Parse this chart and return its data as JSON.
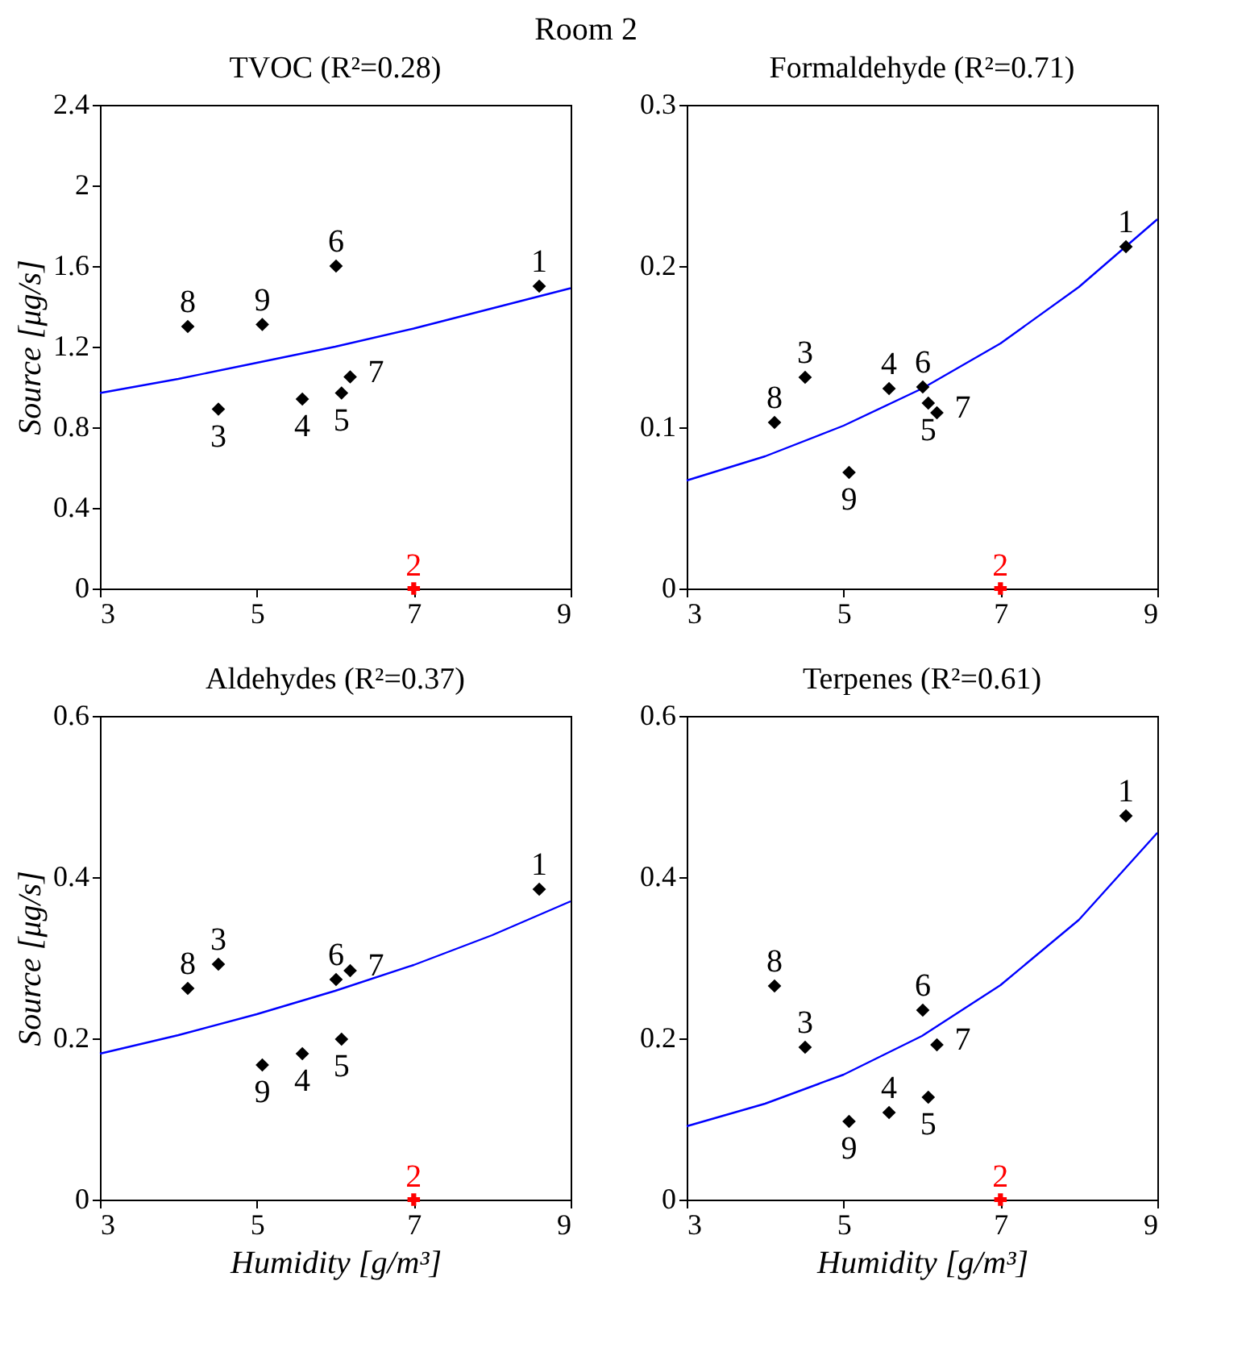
{
  "chart_data": [
    {
      "type": "other",
      "title": "Room 2"
    },
    {
      "type": "scatter",
      "title": "TVOC (R²=0.28)",
      "ylabel": "Source [μg/s]",
      "xlim": [
        3,
        9
      ],
      "xticks": [
        3,
        5,
        7,
        9
      ],
      "ylim": [
        0,
        2.4
      ],
      "yticks": [
        0,
        0.4,
        0.8,
        1.2,
        1.6,
        2,
        2.4
      ],
      "grid": false,
      "series": [
        {
          "type": "line",
          "color": "#0000ff",
          "marker": "none",
          "line_style": "solid",
          "x": [
            3,
            4,
            5,
            6,
            7,
            8,
            9
          ],
          "values": [
            0.97,
            1.04,
            1.12,
            1.2,
            1.29,
            1.39,
            1.49
          ]
        },
        {
          "color": "#000000",
          "marker": "diamond",
          "x": [
            8.6,
            4.51,
            5.58,
            6.08,
            6.01,
            6.19,
            4.12,
            5.07
          ],
          "values": [
            1.5,
            0.89,
            0.94,
            0.97,
            1.6,
            1.05,
            1.3,
            1.31
          ]
        },
        {
          "name": "2",
          "color": "#ff0000",
          "marker": "cross",
          "x": [
            7
          ],
          "values": [
            0
          ]
        }
      ],
      "annotations": [
        {
          "text": "1",
          "x": 8.6,
          "y": 1.5
        },
        {
          "text": "3",
          "x": 4.51,
          "y": 0.89
        },
        {
          "text": "4",
          "x": 5.58,
          "y": 0.94
        },
        {
          "text": "5",
          "x": 6.08,
          "y": 0.97
        },
        {
          "text": "6",
          "x": 6.01,
          "y": 1.6
        },
        {
          "text": "7",
          "x": 6.19,
          "y": 1.05
        },
        {
          "text": "8",
          "x": 4.12,
          "y": 1.3
        },
        {
          "text": "9",
          "x": 5.07,
          "y": 1.31
        }
      ]
    },
    {
      "type": "scatter",
      "title": "Formaldehyde (R²=0.71)",
      "xlim": [
        3,
        9
      ],
      "xticks": [
        3,
        5,
        7,
        9
      ],
      "ylim": [
        0,
        0.3
      ],
      "yticks": [
        0,
        0.1,
        0.2,
        0.3
      ],
      "grid": false,
      "series": [
        {
          "type": "line",
          "color": "#0000ff",
          "marker": "none",
          "line_style": "solid",
          "x": [
            3,
            4,
            5,
            6,
            7,
            8,
            9
          ],
          "values": [
            0.067,
            0.082,
            0.101,
            0.124,
            0.152,
            0.187,
            0.229
          ]
        },
        {
          "color": "#000000",
          "marker": "diamond",
          "x": [
            8.6,
            4.51,
            5.58,
            6.08,
            6.01,
            6.19,
            4.12,
            5.07
          ],
          "values": [
            0.212,
            0.131,
            0.124,
            0.115,
            0.125,
            0.109,
            0.103,
            0.072
          ]
        },
        {
          "name": "2",
          "color": "#ff0000",
          "marker": "cross",
          "x": [
            7
          ],
          "values": [
            0
          ]
        }
      ],
      "annotations": [
        {
          "text": "1",
          "x": 8.6,
          "y": 0.212
        },
        {
          "text": "3",
          "x": 4.51,
          "y": 0.131
        },
        {
          "text": "4",
          "x": 5.58,
          "y": 0.124
        },
        {
          "text": "5",
          "x": 6.08,
          "y": 0.115
        },
        {
          "text": "6",
          "x": 6.01,
          "y": 0.125
        },
        {
          "text": "7",
          "x": 6.19,
          "y": 0.109
        },
        {
          "text": "8",
          "x": 4.12,
          "y": 0.103
        },
        {
          "text": "9",
          "x": 5.07,
          "y": 0.072
        }
      ]
    },
    {
      "type": "scatter",
      "title": "Aldehydes (R²=0.37)",
      "ylabel": "Source [μg/s]",
      "xlabel": "Humidity [g/m³]",
      "xlim": [
        3,
        9
      ],
      "xticks": [
        3,
        5,
        7,
        9
      ],
      "ylim": [
        0,
        0.6
      ],
      "yticks": [
        0,
        0.2,
        0.4,
        0.6
      ],
      "grid": false,
      "series": [
        {
          "type": "line",
          "color": "#0000ff",
          "marker": "none",
          "line_style": "solid",
          "x": [
            3,
            4,
            5,
            6,
            7,
            8,
            9
          ],
          "values": [
            0.181,
            0.204,
            0.23,
            0.259,
            0.291,
            0.328,
            0.37
          ]
        },
        {
          "color": "#000000",
          "marker": "diamond",
          "x": [
            8.6,
            4.51,
            5.58,
            6.08,
            6.01,
            6.19,
            4.12,
            5.07
          ],
          "values": [
            0.385,
            0.292,
            0.181,
            0.199,
            0.273,
            0.284,
            0.262,
            0.167
          ]
        },
        {
          "name": "2",
          "color": "#ff0000",
          "marker": "cross",
          "x": [
            7
          ],
          "values": [
            0
          ]
        }
      ],
      "annotations": [
        {
          "text": "1",
          "x": 8.6,
          "y": 0.385
        },
        {
          "text": "3",
          "x": 4.51,
          "y": 0.292
        },
        {
          "text": "4",
          "x": 5.58,
          "y": 0.181
        },
        {
          "text": "5",
          "x": 6.08,
          "y": 0.199
        },
        {
          "text": "6",
          "x": 6.01,
          "y": 0.273
        },
        {
          "text": "7",
          "x": 6.19,
          "y": 0.284
        },
        {
          "text": "8",
          "x": 4.12,
          "y": 0.262
        },
        {
          "text": "9",
          "x": 5.07,
          "y": 0.167
        }
      ]
    },
    {
      "type": "scatter",
      "title": "Terpenes (R²=0.61)",
      "xlabel": "Humidity [g/m³]",
      "xlim": [
        3,
        9
      ],
      "xticks": [
        3,
        5,
        7,
        9
      ],
      "ylim": [
        0,
        0.6
      ],
      "yticks": [
        0,
        0.2,
        0.4,
        0.6
      ],
      "grid": false,
      "series": [
        {
          "type": "line",
          "color": "#0000ff",
          "marker": "none",
          "line_style": "solid",
          "x": [
            3,
            4,
            5,
            6,
            7,
            8,
            9
          ],
          "values": [
            0.091,
            0.119,
            0.155,
            0.203,
            0.266,
            0.347,
            0.455
          ]
        },
        {
          "color": "#000000",
          "marker": "diamond",
          "x": [
            8.6,
            4.51,
            5.58,
            6.08,
            6.01,
            6.19,
            4.12,
            5.07
          ],
          "values": [
            0.476,
            0.189,
            0.108,
            0.127,
            0.235,
            0.192,
            0.265,
            0.097
          ]
        },
        {
          "name": "2",
          "color": "#ff0000",
          "marker": "cross",
          "x": [
            7
          ],
          "values": [
            0
          ]
        }
      ],
      "annotations": [
        {
          "text": "1",
          "x": 8.6,
          "y": 0.476
        },
        {
          "text": "3",
          "x": 4.51,
          "y": 0.189
        },
        {
          "text": "4",
          "x": 5.58,
          "y": 0.108
        },
        {
          "text": "5",
          "x": 6.08,
          "y": 0.127
        },
        {
          "text": "6",
          "x": 6.01,
          "y": 0.235
        },
        {
          "text": "7",
          "x": 6.19,
          "y": 0.192
        },
        {
          "text": "8",
          "x": 4.12,
          "y": 0.265
        },
        {
          "text": "9",
          "x": 5.07,
          "y": 0.097
        }
      ]
    }
  ]
}
